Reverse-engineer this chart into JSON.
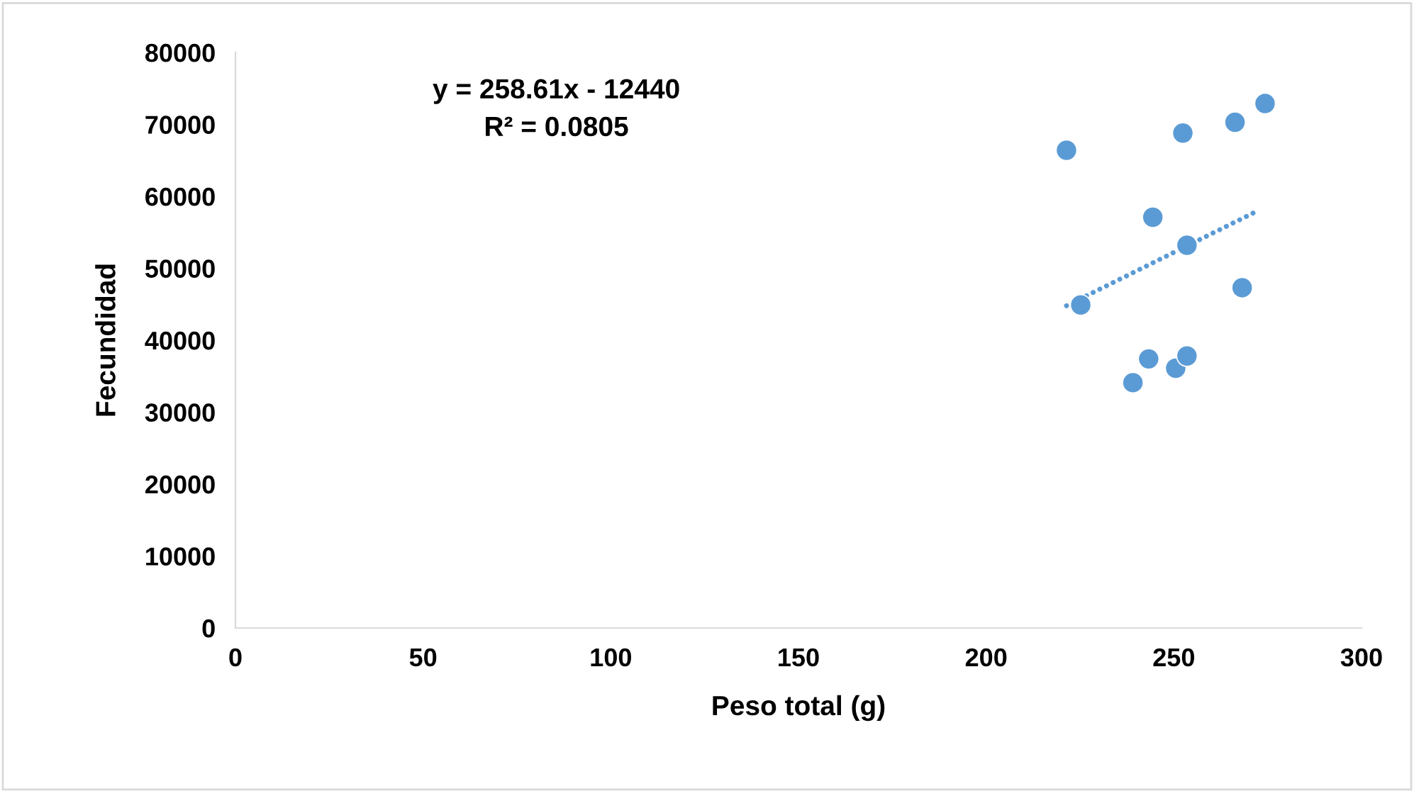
{
  "chart_data": {
    "type": "scatter",
    "xlabel": "Peso total (g)",
    "ylabel": "Fecundidad",
    "xlim": [
      0,
      300
    ],
    "xticks": [
      0,
      50,
      100,
      150,
      200,
      250,
      300
    ],
    "ylim": [
      0,
      80000
    ],
    "yticks": [
      0,
      10000,
      20000,
      30000,
      40000,
      50000,
      60000,
      70000,
      80000
    ],
    "grid": false,
    "marker": "circle",
    "series": [
      {
        "color": "#5b9bd5",
        "x": [
          221.4,
          225.2,
          239.1,
          243.3,
          244.4,
          250.5,
          252.4,
          253.5,
          253.5,
          266.3,
          268.2,
          274.3
        ],
        "values": [
          66400,
          44900,
          34100,
          37400,
          57100,
          36100,
          68800,
          37800,
          53200,
          70300,
          47300,
          72900
        ]
      },
      {
        "type": "line",
        "color": "#5b9bd5",
        "line_style": "dotted",
        "marker": "none",
        "x": [
          221.4,
          272
        ],
        "values": [
          44800,
          57900
        ]
      }
    ],
    "annotations": [
      "y = 258.61x - 12440\nR² = 0.0805"
    ]
  }
}
